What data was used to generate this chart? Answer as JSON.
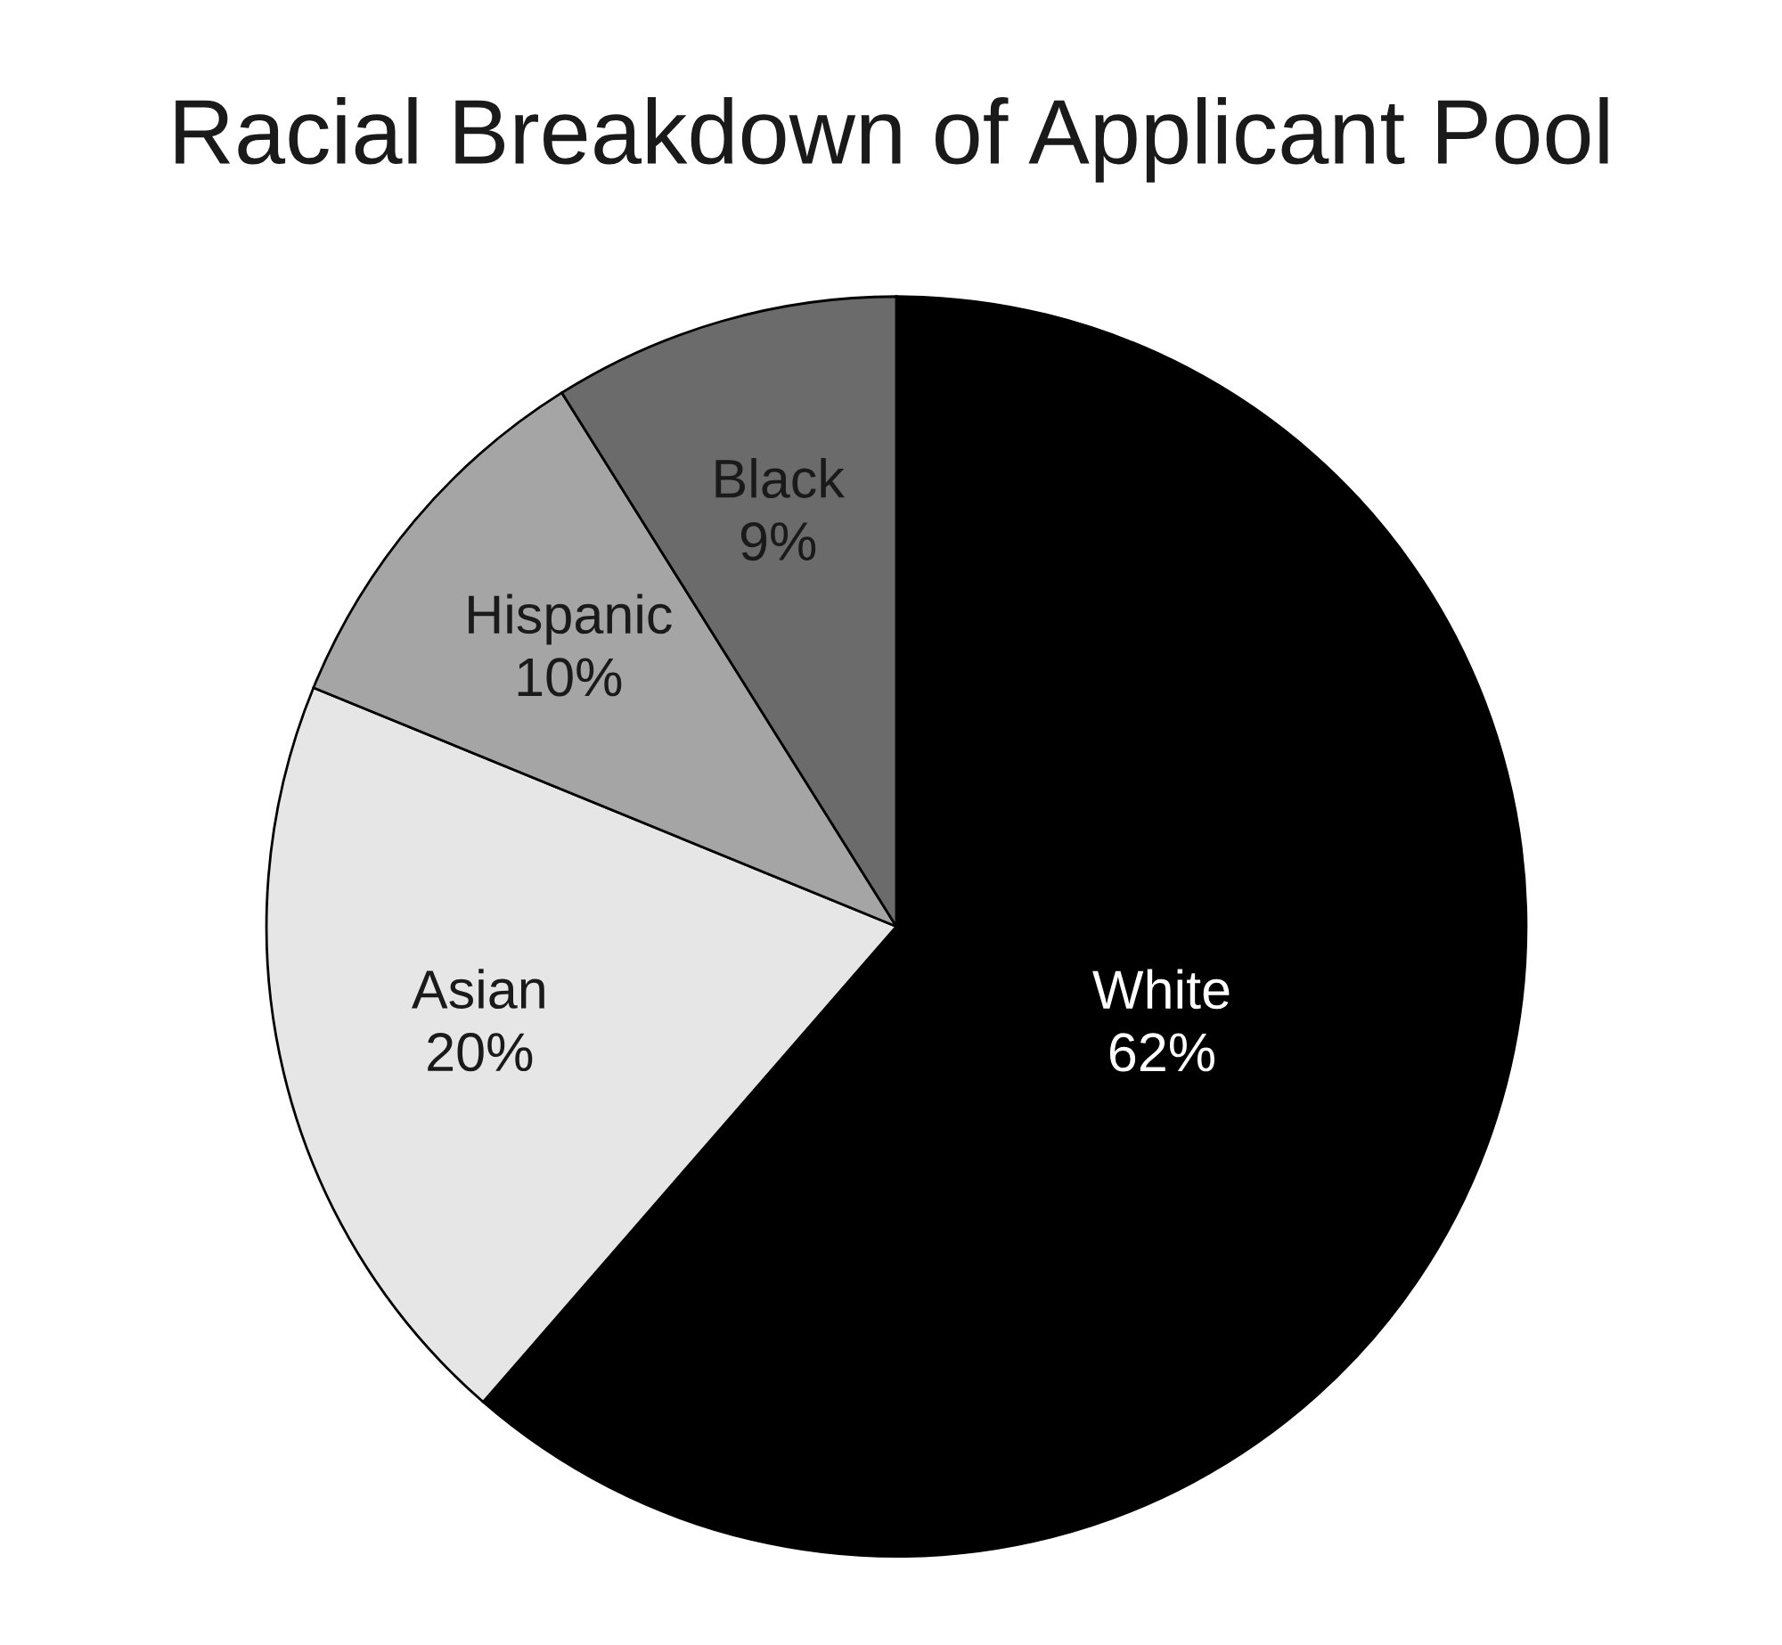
{
  "chart_data": {
    "type": "pie",
    "title": "Racial Breakdown of Applicant Pool",
    "categories": [
      "White",
      "Asian",
      "Hispanic",
      "Black"
    ],
    "values": [
      62,
      20,
      10,
      9
    ],
    "value_labels": [
      "62%",
      "20%",
      "10%",
      "9%"
    ],
    "colors": [
      "#000000",
      "#e6e6e6",
      "#a5a5a5",
      "#6b6b6b"
    ]
  }
}
